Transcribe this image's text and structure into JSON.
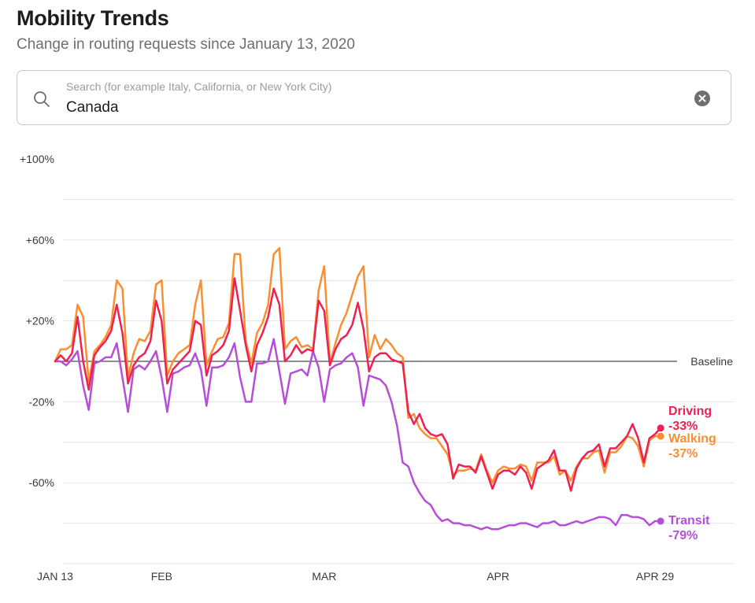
{
  "header": {
    "title": "Mobility Trends",
    "subtitle": "Change in routing requests since January 13, 2020"
  },
  "search": {
    "placeholder": "Search (for example Italy, California, or New York City)",
    "value": "Canada",
    "icon": "search-icon",
    "clear_icon": "clear-icon"
  },
  "chart_data": {
    "type": "line",
    "title": "Mobility Trends",
    "subtitle": "Change in routing requests since January 13, 2020",
    "xlabel": "",
    "ylabel": "",
    "ylim": [
      -100,
      100
    ],
    "y_ticks": [
      {
        "value": 100,
        "label": "+100%"
      },
      {
        "value": 60,
        "label": "+60%"
      },
      {
        "value": 20,
        "label": "+20%"
      },
      {
        "value": -20,
        "label": "-20%"
      },
      {
        "value": -60,
        "label": "-60%"
      }
    ],
    "gridlines": [
      80,
      60,
      40,
      20,
      -20,
      -40,
      -60,
      -80,
      -100
    ],
    "baseline": {
      "value": 0,
      "label": "Baseline"
    },
    "x_ticks": [
      {
        "day": 0,
        "label": "JAN 13"
      },
      {
        "day": 19,
        "label": "FEB"
      },
      {
        "day": 48,
        "label": "MAR"
      },
      {
        "day": 79,
        "label": "APR"
      },
      {
        "day": 107,
        "label": "APR 29"
      }
    ],
    "x_range": [
      0,
      107
    ],
    "series": [
      {
        "name": "Driving",
        "final_label": "-33%",
        "color": "#ee2150",
        "values": [
          0,
          3,
          0,
          4,
          22,
          0,
          -14,
          3,
          7,
          10,
          15,
          28,
          14,
          -11,
          -2,
          2,
          4,
          10,
          30,
          20,
          -11,
          -4,
          -1,
          2,
          5,
          20,
          18,
          -7,
          3,
          5,
          8,
          15,
          41,
          25,
          8,
          -5,
          8,
          14,
          22,
          36,
          28,
          0,
          3,
          8,
          4,
          6,
          5,
          30,
          25,
          -2,
          6,
          11,
          13,
          18,
          29,
          16,
          -5,
          2,
          4,
          4,
          1,
          0,
          -1,
          -25,
          -31,
          -26,
          -33,
          -36,
          -37,
          -36,
          -41,
          -58,
          -51,
          -52,
          -52,
          -55,
          -47,
          -55,
          -63,
          -56,
          -54,
          -54,
          -56,
          -52,
          -55,
          -63,
          -53,
          -51,
          -49,
          -44,
          -54,
          -54,
          -64,
          -53,
          -48,
          -45,
          -44,
          -41,
          -52,
          -43,
          -43,
          -40,
          -37,
          -31,
          -38,
          -50,
          -38,
          -36,
          -33
        ]
      },
      {
        "name": "Walking",
        "final_label": "-37%",
        "color": "#fa8e32",
        "values": [
          0,
          6,
          6,
          8,
          28,
          22,
          -10,
          5,
          8,
          12,
          18,
          40,
          36,
          -8,
          4,
          11,
          10,
          15,
          38,
          40,
          -7,
          0,
          4,
          6,
          8,
          28,
          40,
          -2,
          5,
          11,
          12,
          19,
          53,
          53,
          10,
          -1,
          14,
          19,
          28,
          53,
          56,
          6,
          10,
          12,
          7,
          8,
          6,
          35,
          47,
          -1,
          9,
          18,
          24,
          33,
          42,
          47,
          2,
          13,
          6,
          11,
          8,
          4,
          2,
          -28,
          -26,
          -33,
          -36,
          -38,
          -38,
          -42,
          -46,
          -56,
          -54,
          -54,
          -53,
          -54,
          -46,
          -54,
          -60,
          -54,
          -52,
          -53,
          -53,
          -51,
          -52,
          -59,
          -50,
          -50,
          -50,
          -47,
          -56,
          -54,
          -59,
          -52,
          -48,
          -48,
          -45,
          -44,
          -55,
          -45,
          -45,
          -42,
          -37,
          -38,
          -42,
          -52,
          -39,
          -37,
          -37
        ]
      },
      {
        "name": "Transit",
        "final_label": "-79%",
        "color": "#b54fd8",
        "values": [
          0,
          0,
          -2,
          1,
          5,
          -12,
          -24,
          -1,
          0,
          2,
          2,
          9,
          -8,
          -25,
          -4,
          -2,
          -4,
          0,
          5,
          -8,
          -25,
          -6,
          -5,
          -3,
          -2,
          4,
          -4,
          -22,
          -3,
          -3,
          -2,
          2,
          9,
          -8,
          -20,
          -20,
          -1,
          -1,
          0,
          11,
          -5,
          -21,
          -6,
          -5,
          -4,
          -7,
          5,
          -3,
          -20,
          -4,
          -2,
          -1,
          2,
          4,
          -3,
          -22,
          -7,
          -8,
          -9,
          -12,
          -20,
          -32,
          -50,
          -52,
          -60,
          -65,
          -69,
          -71,
          -76,
          -79,
          -78,
          -80,
          -80,
          -81,
          -81,
          -82,
          -83,
          -82,
          -83,
          -83,
          -82,
          -81,
          -81,
          -80,
          -80,
          -81,
          -82,
          -80,
          -80,
          -79,
          -81,
          -81,
          -80,
          -79,
          -80,
          -79,
          -78,
          -77,
          -77,
          -78,
          -81,
          -76,
          -76,
          -77,
          -77,
          -78,
          -81,
          -79,
          -79
        ]
      }
    ]
  }
}
